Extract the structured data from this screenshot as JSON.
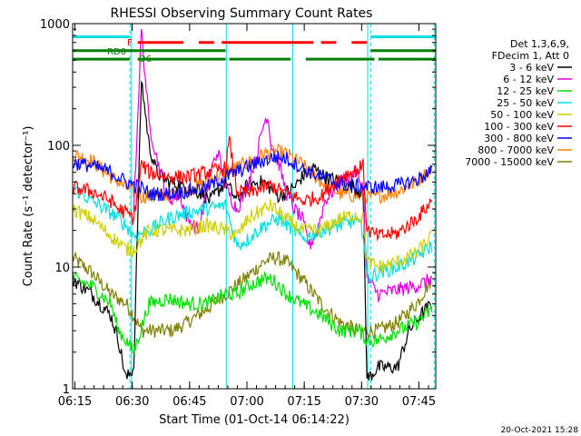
{
  "chart_data": {
    "type": "line",
    "title": "RHESSI Observing Summary Count Rates",
    "xlabel": "Start Time (01-Oct-14 06:14:22)",
    "ylabel": "Count Rate (s⁻¹ detector⁻¹)",
    "y_scale": "log",
    "ylim": [
      1,
      1000
    ],
    "xlim_minutes_after_0614_22": [
      0,
      95
    ],
    "x_ticks": [
      {
        "label": "06:15",
        "t": 0.6
      },
      {
        "label": "06:30",
        "t": 15.6
      },
      {
        "label": "06:45",
        "t": 30.6
      },
      {
        "label": "07:00",
        "t": 45.6
      },
      {
        "label": "07:15",
        "t": 60.6
      },
      {
        "label": "07:30",
        "t": 75.6
      },
      {
        "label": "07:45",
        "t": 90.6
      }
    ],
    "y_tick_labels": [
      {
        "label": "1",
        "v": 1
      },
      {
        "label": "10",
        "v": 10
      },
      {
        "label": "100",
        "v": 100
      },
      {
        "label": "1000",
        "v": 1000
      }
    ],
    "legend_title": [
      "Det 1,3,6,9,",
      "FDecim 1, Att 0"
    ],
    "legend_placement": "right",
    "series": [
      {
        "name": "3 - 6 keV",
        "color": "#000000",
        "points": [
          [
            0,
            8
          ],
          [
            5,
            6
          ],
          [
            10,
            4
          ],
          [
            12,
            2.5
          ],
          [
            14,
            1.2
          ],
          [
            16,
            1.5
          ],
          [
            18,
            350
          ],
          [
            20,
            100
          ],
          [
            22,
            60
          ],
          [
            25,
            50
          ],
          [
            30,
            45
          ],
          [
            34,
            40
          ],
          [
            36,
            35
          ],
          [
            40,
            50
          ],
          [
            43,
            35
          ],
          [
            46,
            48
          ],
          [
            50,
            50
          ],
          [
            54,
            38
          ],
          [
            58,
            45
          ],
          [
            60,
            55
          ],
          [
            63,
            65
          ],
          [
            66,
            55
          ],
          [
            70,
            50
          ],
          [
            74,
            45
          ],
          [
            76,
            40
          ],
          [
            77,
            1.2
          ],
          [
            80,
            1.5
          ],
          [
            83,
            1.5
          ],
          [
            85,
            1.5
          ],
          [
            88,
            3
          ],
          [
            91,
            4
          ],
          [
            94,
            5
          ]
        ]
      },
      {
        "name": "6 - 12 keV",
        "color": "#e000e0",
        "points": [
          [
            16,
            30
          ],
          [
            18,
            900
          ],
          [
            20,
            150
          ],
          [
            22,
            80
          ],
          [
            25,
            35
          ],
          [
            28,
            40
          ],
          [
            30,
            25
          ],
          [
            33,
            20
          ],
          [
            36,
            60
          ],
          [
            38,
            90
          ],
          [
            40,
            45
          ],
          [
            43,
            30
          ],
          [
            45,
            40
          ],
          [
            48,
            80
          ],
          [
            50,
            150
          ],
          [
            51,
            180
          ],
          [
            52,
            100
          ],
          [
            54,
            70
          ],
          [
            56,
            40
          ],
          [
            58,
            30
          ],
          [
            60,
            25
          ],
          [
            62,
            15
          ],
          [
            64,
            20
          ],
          [
            66,
            35
          ],
          [
            70,
            50
          ],
          [
            74,
            60
          ],
          [
            76,
            45
          ],
          [
            77,
            8
          ],
          [
            80,
            6
          ],
          [
            85,
            6.5
          ],
          [
            90,
            7
          ],
          [
            94,
            8
          ]
        ]
      },
      {
        "name": "12 - 25 keV",
        "color": "#00e000",
        "points": [
          [
            0,
            8
          ],
          [
            5,
            7
          ],
          [
            10,
            5
          ],
          [
            12,
            3
          ],
          [
            14,
            2.5
          ],
          [
            16,
            2
          ],
          [
            20,
            5
          ],
          [
            25,
            5.5
          ],
          [
            30,
            5
          ],
          [
            35,
            5
          ],
          [
            40,
            6
          ],
          [
            43,
            6
          ],
          [
            46,
            7
          ],
          [
            50,
            8
          ],
          [
            52,
            8
          ],
          [
            54,
            7
          ],
          [
            56,
            6
          ],
          [
            60,
            5
          ],
          [
            65,
            4
          ],
          [
            70,
            3
          ],
          [
            75,
            3
          ],
          [
            77,
            2.5
          ],
          [
            80,
            2.5
          ],
          [
            85,
            3
          ],
          [
            90,
            3.5
          ],
          [
            94,
            4.5
          ]
        ]
      },
      {
        "name": "25 - 50 keV",
        "color": "#00e0e0",
        "points": [
          [
            0,
            45
          ],
          [
            5,
            35
          ],
          [
            10,
            28
          ],
          [
            12,
            25
          ],
          [
            14,
            22
          ],
          [
            16,
            18
          ],
          [
            20,
            20
          ],
          [
            25,
            25
          ],
          [
            30,
            28
          ],
          [
            35,
            30
          ],
          [
            40,
            32
          ],
          [
            43,
            15
          ],
          [
            46,
            17
          ],
          [
            50,
            22
          ],
          [
            54,
            25
          ],
          [
            58,
            20
          ],
          [
            60,
            17
          ],
          [
            65,
            20
          ],
          [
            70,
            22
          ],
          [
            74,
            24
          ],
          [
            76,
            20
          ],
          [
            77,
            8
          ],
          [
            80,
            9
          ],
          [
            85,
            10
          ],
          [
            90,
            12
          ],
          [
            94,
            15
          ]
        ]
      },
      {
        "name": "50 - 100 keV",
        "color": "#d0d000",
        "points": [
          [
            0,
            30
          ],
          [
            5,
            25
          ],
          [
            10,
            18
          ],
          [
            12,
            16
          ],
          [
            14,
            14
          ],
          [
            16,
            14
          ],
          [
            20,
            20
          ],
          [
            25,
            20
          ],
          [
            30,
            20
          ],
          [
            35,
            22
          ],
          [
            40,
            20
          ],
          [
            43,
            18
          ],
          [
            46,
            25
          ],
          [
            50,
            30
          ],
          [
            52,
            32
          ],
          [
            54,
            28
          ],
          [
            58,
            22
          ],
          [
            60,
            20
          ],
          [
            65,
            20
          ],
          [
            70,
            25
          ],
          [
            74,
            27
          ],
          [
            76,
            25
          ],
          [
            77,
            11
          ],
          [
            80,
            10
          ],
          [
            85,
            11
          ],
          [
            90,
            13
          ],
          [
            94,
            18
          ]
        ]
      },
      {
        "name": "100 - 300 keV",
        "color": "#ff0000",
        "points": [
          [
            0,
            45
          ],
          [
            5,
            42
          ],
          [
            10,
            35
          ],
          [
            12,
            30
          ],
          [
            14,
            28
          ],
          [
            16,
            25
          ],
          [
            18,
            70
          ],
          [
            20,
            60
          ],
          [
            25,
            55
          ],
          [
            30,
            55
          ],
          [
            35,
            60
          ],
          [
            40,
            65
          ],
          [
            41,
            110
          ],
          [
            43,
            42
          ],
          [
            46,
            40
          ],
          [
            50,
            45
          ],
          [
            52,
            47
          ],
          [
            54,
            43
          ],
          [
            58,
            38
          ],
          [
            60,
            35
          ],
          [
            65,
            38
          ],
          [
            70,
            55
          ],
          [
            74,
            62
          ],
          [
            76,
            68
          ],
          [
            77,
            20
          ],
          [
            80,
            18
          ],
          [
            85,
            19
          ],
          [
            90,
            25
          ],
          [
            94,
            35
          ]
        ]
      },
      {
        "name": "300 - 800 keV",
        "color": "#0000ff",
        "points": [
          [
            0,
            72
          ],
          [
            5,
            68
          ],
          [
            10,
            60
          ],
          [
            14,
            50
          ],
          [
            18,
            45
          ],
          [
            20,
            40
          ],
          [
            25,
            40
          ],
          [
            30,
            42
          ],
          [
            35,
            45
          ],
          [
            40,
            55
          ],
          [
            45,
            65
          ],
          [
            50,
            75
          ],
          [
            53,
            80
          ],
          [
            56,
            78
          ],
          [
            60,
            65
          ],
          [
            65,
            55
          ],
          [
            70,
            48
          ],
          [
            75,
            46
          ],
          [
            80,
            45
          ],
          [
            85,
            47
          ],
          [
            90,
            52
          ],
          [
            94,
            62
          ]
        ]
      },
      {
        "name": "800 - 7000 keV",
        "color": "#ff8000",
        "points": [
          [
            0,
            85
          ],
          [
            5,
            75
          ],
          [
            10,
            55
          ],
          [
            14,
            45
          ],
          [
            18,
            38
          ],
          [
            22,
            38
          ],
          [
            26,
            40
          ],
          [
            30,
            42
          ],
          [
            35,
            50
          ],
          [
            40,
            60
          ],
          [
            45,
            70
          ],
          [
            50,
            85
          ],
          [
            53,
            90
          ],
          [
            56,
            85
          ],
          [
            60,
            70
          ],
          [
            65,
            50
          ],
          [
            70,
            40
          ],
          [
            75,
            38
          ],
          [
            80,
            38
          ],
          [
            85,
            42
          ],
          [
            90,
            50
          ],
          [
            94,
            65
          ]
        ]
      },
      {
        "name": "7000 - 15000 keV",
        "color": "#808000",
        "points": [
          [
            0,
            12
          ],
          [
            5,
            9
          ],
          [
            10,
            6
          ],
          [
            14,
            5
          ],
          [
            16,
            4
          ],
          [
            18,
            3
          ],
          [
            22,
            3
          ],
          [
            26,
            3
          ],
          [
            30,
            3.5
          ],
          [
            35,
            4.5
          ],
          [
            40,
            6
          ],
          [
            45,
            8
          ],
          [
            50,
            11
          ],
          [
            53,
            12
          ],
          [
            56,
            11
          ],
          [
            60,
            8
          ],
          [
            65,
            5
          ],
          [
            70,
            3.5
          ],
          [
            75,
            3
          ],
          [
            80,
            3
          ],
          [
            85,
            3.5
          ],
          [
            90,
            5
          ],
          [
            94,
            8
          ]
        ]
      }
    ],
    "flag_bars": [
      {
        "label": "",
        "color": "#00e0e0",
        "y_value": 780,
        "segments": [
          [
            0,
            15
          ],
          [
            78,
            95
          ]
        ]
      },
      {
        "label": "F",
        "color": "#ff0000",
        "y_value": 700,
        "segments": [
          [
            17,
            29
          ],
          [
            33,
            37
          ],
          [
            39,
            63
          ],
          [
            65,
            69
          ],
          [
            73,
            77
          ]
        ]
      },
      {
        "label": "RD0",
        "color": "#008000",
        "y_value": 600,
        "segments": [
          [
            0,
            40
          ],
          [
            78,
            95
          ]
        ]
      },
      {
        "label": "D6",
        "color": "#008000",
        "y_value": 510,
        "segments": [
          [
            0,
            15
          ],
          [
            17,
            40
          ],
          [
            41,
            57
          ],
          [
            61,
            79
          ],
          [
            80,
            95
          ]
        ]
      }
    ],
    "flag_labels": [
      "F",
      "RD0",
      "D6"
    ],
    "vertical_markers": {
      "color": "#00e0e0",
      "solid": [
        15.4,
        40.2,
        57.6,
        77.2
      ],
      "dashed": [
        15.0,
        78.0,
        94.6
      ]
    },
    "timestamp": "20-Oct-2021 15:28"
  }
}
